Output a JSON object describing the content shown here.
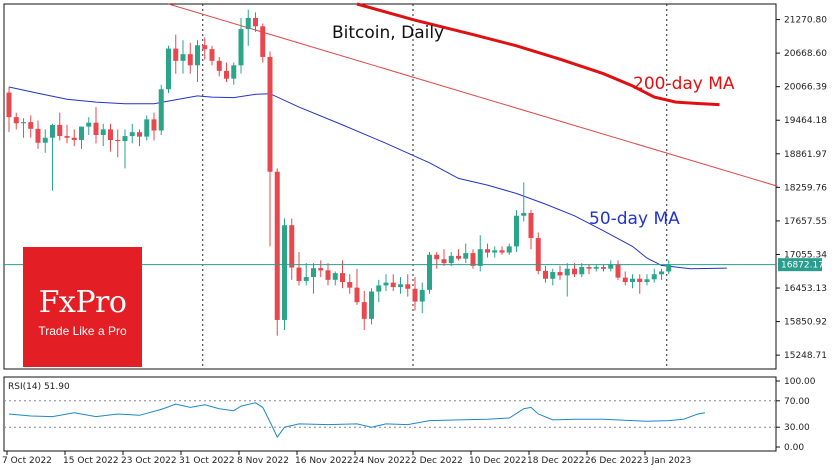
{
  "chart_data": [
    {
      "type": "candlestick",
      "title": "Bitcoin, Daily",
      "y_ticks": [
        "21270.80",
        "20668.60",
        "20066.39",
        "19464.18",
        "18861.97",
        "18259.76",
        "17657.55",
        "17055.34",
        "16453.13",
        "15850.92",
        "15248.71"
      ],
      "ylim": [
        15000,
        21550
      ],
      "current_price_label": "16872.17",
      "current_price": 16872.17,
      "x_labels": [
        "7 Oct 2022",
        "15 Oct 2022",
        "23 Oct 2022",
        "31 Oct 2022",
        "8 Nov 2022",
        "16 Nov 2022",
        "24 Nov 2022",
        "2 Dec 2022",
        "10 Dec 2022",
        "18 Dec 2022",
        "26 Dec 2022",
        "3 Jan 2023"
      ],
      "ma_labels": {
        "ma200": "200-day MA",
        "ma50": "50-day MA"
      },
      "colors": {
        "up": "#2aa58a",
        "down": "#e8474e",
        "ma200": "#e01010",
        "ma50": "#2233cc",
        "trend": "#e04848",
        "price_line": "#2a9d8f"
      },
      "candles": [
        {
          "o": 19960,
          "h": 20060,
          "l": 19250,
          "c": 19520
        },
        {
          "o": 19520,
          "h": 19600,
          "l": 19300,
          "c": 19410
        },
        {
          "o": 19410,
          "h": 19500,
          "l": 19150,
          "c": 19430
        },
        {
          "o": 19430,
          "h": 19550,
          "l": 19150,
          "c": 19310
        },
        {
          "o": 19310,
          "h": 19460,
          "l": 18950,
          "c": 19060
        },
        {
          "o": 19060,
          "h": 19300,
          "l": 18880,
          "c": 19150
        },
        {
          "o": 19150,
          "h": 19400,
          "l": 18200,
          "c": 19380
        },
        {
          "o": 19380,
          "h": 19600,
          "l": 19100,
          "c": 19180
        },
        {
          "o": 19180,
          "h": 19380,
          "l": 19050,
          "c": 19150
        },
        {
          "o": 19150,
          "h": 19300,
          "l": 19000,
          "c": 19110
        },
        {
          "o": 19110,
          "h": 19300,
          "l": 18950,
          "c": 19350
        },
        {
          "o": 19350,
          "h": 19520,
          "l": 19200,
          "c": 19420
        },
        {
          "o": 19420,
          "h": 19700,
          "l": 19050,
          "c": 19200
        },
        {
          "o": 19200,
          "h": 19400,
          "l": 19000,
          "c": 19300
        },
        {
          "o": 19300,
          "h": 19400,
          "l": 18900,
          "c": 19110
        },
        {
          "o": 19110,
          "h": 19300,
          "l": 18800,
          "c": 19090
        },
        {
          "o": 19090,
          "h": 19300,
          "l": 18600,
          "c": 19180
        },
        {
          "o": 19180,
          "h": 19400,
          "l": 19050,
          "c": 19250
        },
        {
          "o": 19250,
          "h": 19300,
          "l": 19000,
          "c": 19170
        },
        {
          "o": 19170,
          "h": 19550,
          "l": 19100,
          "c": 19480
        },
        {
          "o": 19480,
          "h": 19600,
          "l": 19100,
          "c": 19280
        },
        {
          "o": 19280,
          "h": 20100,
          "l": 19200,
          "c": 20020
        },
        {
          "o": 20020,
          "h": 20800,
          "l": 19950,
          "c": 20750
        },
        {
          "o": 20750,
          "h": 21000,
          "l": 20300,
          "c": 20530
        },
        {
          "o": 20530,
          "h": 20900,
          "l": 20300,
          "c": 20650
        },
        {
          "o": 20650,
          "h": 20850,
          "l": 20300,
          "c": 20450
        },
        {
          "o": 20450,
          "h": 20900,
          "l": 20150,
          "c": 20810
        },
        {
          "o": 20810,
          "h": 20950,
          "l": 20550,
          "c": 20740
        },
        {
          "o": 20740,
          "h": 20800,
          "l": 20450,
          "c": 20530
        },
        {
          "o": 20530,
          "h": 20600,
          "l": 20250,
          "c": 20350
        },
        {
          "o": 20350,
          "h": 20500,
          "l": 20150,
          "c": 20210
        },
        {
          "o": 20210,
          "h": 20500,
          "l": 20100,
          "c": 20450
        },
        {
          "o": 20450,
          "h": 21300,
          "l": 20300,
          "c": 21100
        },
        {
          "o": 21100,
          "h": 21450,
          "l": 20800,
          "c": 21300
        },
        {
          "o": 21300,
          "h": 21400,
          "l": 21050,
          "c": 21150
        },
        {
          "o": 21150,
          "h": 21200,
          "l": 20500,
          "c": 20600
        },
        {
          "o": 20600,
          "h": 20700,
          "l": 17200,
          "c": 18540
        },
        {
          "o": 18540,
          "h": 18600,
          "l": 15600,
          "c": 15880
        },
        {
          "o": 15880,
          "h": 17700,
          "l": 15700,
          "c": 17580
        },
        {
          "o": 17580,
          "h": 17700,
          "l": 16600,
          "c": 16820
        },
        {
          "o": 16820,
          "h": 17100,
          "l": 16500,
          "c": 16580
        },
        {
          "o": 16580,
          "h": 16900,
          "l": 16500,
          "c": 16650
        },
        {
          "o": 16650,
          "h": 16900,
          "l": 16350,
          "c": 16810
        },
        {
          "o": 16810,
          "h": 16950,
          "l": 16650,
          "c": 16770
        },
        {
          "o": 16770,
          "h": 16900,
          "l": 16500,
          "c": 16600
        },
        {
          "o": 16600,
          "h": 16750,
          "l": 16500,
          "c": 16720
        },
        {
          "o": 16720,
          "h": 16950,
          "l": 16450,
          "c": 16560
        },
        {
          "o": 16560,
          "h": 16700,
          "l": 16350,
          "c": 16460
        },
        {
          "o": 16460,
          "h": 16800,
          "l": 16150,
          "c": 16200
        },
        {
          "o": 16200,
          "h": 16400,
          "l": 15700,
          "c": 15900
        },
        {
          "o": 15900,
          "h": 16450,
          "l": 15800,
          "c": 16390
        },
        {
          "o": 16390,
          "h": 16600,
          "l": 16200,
          "c": 16500
        },
        {
          "o": 16500,
          "h": 16700,
          "l": 16400,
          "c": 16550
        },
        {
          "o": 16550,
          "h": 16700,
          "l": 16400,
          "c": 16470
        },
        {
          "o": 16470,
          "h": 16650,
          "l": 16350,
          "c": 16520
        },
        {
          "o": 16520,
          "h": 16700,
          "l": 16300,
          "c": 16440
        },
        {
          "o": 16440,
          "h": 16650,
          "l": 16050,
          "c": 16210
        },
        {
          "o": 16210,
          "h": 16550,
          "l": 16000,
          "c": 16420
        },
        {
          "o": 16420,
          "h": 17100,
          "l": 16350,
          "c": 17050
        },
        {
          "o": 17050,
          "h": 17100,
          "l": 16800,
          "c": 16970
        },
        {
          "o": 16970,
          "h": 17150,
          "l": 16850,
          "c": 16900
        },
        {
          "o": 16900,
          "h": 17100,
          "l": 16850,
          "c": 17030
        },
        {
          "o": 17030,
          "h": 17150,
          "l": 16950,
          "c": 16980
        },
        {
          "o": 16980,
          "h": 17250,
          "l": 16900,
          "c": 17080
        },
        {
          "o": 17080,
          "h": 17150,
          "l": 16800,
          "c": 16850
        },
        {
          "o": 16850,
          "h": 17400,
          "l": 16750,
          "c": 17150
        },
        {
          "o": 17150,
          "h": 17250,
          "l": 17000,
          "c": 17090
        },
        {
          "o": 17090,
          "h": 17200,
          "l": 17000,
          "c": 17130
        },
        {
          "o": 17130,
          "h": 17200,
          "l": 17050,
          "c": 17090
        },
        {
          "o": 17090,
          "h": 17250,
          "l": 17050,
          "c": 17200
        },
        {
          "o": 17200,
          "h": 17850,
          "l": 17100,
          "c": 17750
        },
        {
          "o": 17750,
          "h": 18350,
          "l": 17650,
          "c": 17800
        },
        {
          "o": 17800,
          "h": 17850,
          "l": 17150,
          "c": 17350
        },
        {
          "o": 17350,
          "h": 17450,
          "l": 16700,
          "c": 16760
        },
        {
          "o": 16760,
          "h": 16850,
          "l": 16550,
          "c": 16620
        },
        {
          "o": 16620,
          "h": 16800,
          "l": 16500,
          "c": 16740
        },
        {
          "o": 16740,
          "h": 16850,
          "l": 16600,
          "c": 16680
        },
        {
          "o": 16680,
          "h": 16900,
          "l": 16300,
          "c": 16800
        },
        {
          "o": 16800,
          "h": 16900,
          "l": 16650,
          "c": 16700
        },
        {
          "o": 16700,
          "h": 16900,
          "l": 16650,
          "c": 16830
        },
        {
          "o": 16830,
          "h": 16880,
          "l": 16700,
          "c": 16800
        },
        {
          "o": 16800,
          "h": 16880,
          "l": 16750,
          "c": 16830
        },
        {
          "o": 16830,
          "h": 16880,
          "l": 16750,
          "c": 16800
        },
        {
          "o": 16800,
          "h": 16950,
          "l": 16750,
          "c": 16880
        },
        {
          "o": 16880,
          "h": 16950,
          "l": 16600,
          "c": 16640
        },
        {
          "o": 16640,
          "h": 16750,
          "l": 16500,
          "c": 16560
        },
        {
          "o": 16560,
          "h": 16700,
          "l": 16450,
          "c": 16620
        },
        {
          "o": 16620,
          "h": 16700,
          "l": 16350,
          "c": 16560
        },
        {
          "o": 16560,
          "h": 16700,
          "l": 16500,
          "c": 16610
        },
        {
          "o": 16610,
          "h": 16800,
          "l": 16550,
          "c": 16700
        },
        {
          "o": 16700,
          "h": 16800,
          "l": 16600,
          "c": 16750
        },
        {
          "o": 16750,
          "h": 16950,
          "l": 16700,
          "c": 16872
        }
      ],
      "ma200": [
        {
          "i": 48,
          "v": 21550
        },
        {
          "i": 56,
          "v": 21260
        },
        {
          "i": 64,
          "v": 21000
        },
        {
          "i": 70,
          "v": 20800
        },
        {
          "i": 76,
          "v": 20560
        },
        {
          "i": 82,
          "v": 20300
        },
        {
          "i": 86,
          "v": 20080
        },
        {
          "i": 89,
          "v": 19880
        },
        {
          "i": 92,
          "v": 19790
        },
        {
          "i": 95,
          "v": 19765
        },
        {
          "i": 98,
          "v": 19745
        }
      ],
      "ma50": [
        {
          "i": 0,
          "v": 20060
        },
        {
          "i": 4,
          "v": 19950
        },
        {
          "i": 8,
          "v": 19840
        },
        {
          "i": 12,
          "v": 19790
        },
        {
          "i": 16,
          "v": 19760
        },
        {
          "i": 20,
          "v": 19760
        },
        {
          "i": 23,
          "v": 19830
        },
        {
          "i": 26,
          "v": 19900
        },
        {
          "i": 28,
          "v": 19880
        },
        {
          "i": 31,
          "v": 19870
        },
        {
          "i": 34,
          "v": 19930
        },
        {
          "i": 36,
          "v": 19940
        },
        {
          "i": 40,
          "v": 19700
        },
        {
          "i": 46,
          "v": 19380
        },
        {
          "i": 52,
          "v": 19050
        },
        {
          "i": 58,
          "v": 18700
        },
        {
          "i": 62,
          "v": 18420
        },
        {
          "i": 66,
          "v": 18300
        },
        {
          "i": 70,
          "v": 18150
        },
        {
          "i": 74,
          "v": 17960
        },
        {
          "i": 78,
          "v": 17750
        },
        {
          "i": 82,
          "v": 17480
        },
        {
          "i": 86,
          "v": 17200
        },
        {
          "i": 88,
          "v": 16990
        },
        {
          "i": 90,
          "v": 16860
        },
        {
          "i": 94,
          "v": 16800
        },
        {
          "i": 99,
          "v": 16810
        }
      ],
      "trend": [
        {
          "i": 22,
          "v": 21550
        },
        {
          "i": 106,
          "v": 18280
        }
      ],
      "date_separators": [
        27,
        56,
        91
      ]
    },
    {
      "type": "line",
      "title": "RSI(14) 51.90",
      "y_ticks": [
        "100.00",
        "70.00",
        "30.00",
        "0.00"
      ],
      "levels": [
        70,
        30
      ],
      "ylim": [
        0,
        100
      ],
      "values": [
        {
          "i": 0,
          "v": 50
        },
        {
          "i": 3,
          "v": 47
        },
        {
          "i": 6,
          "v": 46
        },
        {
          "i": 9,
          "v": 52
        },
        {
          "i": 12,
          "v": 46
        },
        {
          "i": 15,
          "v": 50
        },
        {
          "i": 18,
          "v": 48
        },
        {
          "i": 21,
          "v": 57
        },
        {
          "i": 23,
          "v": 65
        },
        {
          "i": 25,
          "v": 60
        },
        {
          "i": 27,
          "v": 64
        },
        {
          "i": 29,
          "v": 58
        },
        {
          "i": 31,
          "v": 55
        },
        {
          "i": 32,
          "v": 62
        },
        {
          "i": 34,
          "v": 67
        },
        {
          "i": 35,
          "v": 60
        },
        {
          "i": 36,
          "v": 38
        },
        {
          "i": 37,
          "v": 15
        },
        {
          "i": 38,
          "v": 30
        },
        {
          "i": 40,
          "v": 35
        },
        {
          "i": 44,
          "v": 34
        },
        {
          "i": 48,
          "v": 35
        },
        {
          "i": 50,
          "v": 30
        },
        {
          "i": 52,
          "v": 35
        },
        {
          "i": 55,
          "v": 34
        },
        {
          "i": 58,
          "v": 40
        },
        {
          "i": 62,
          "v": 41
        },
        {
          "i": 66,
          "v": 42
        },
        {
          "i": 69,
          "v": 44
        },
        {
          "i": 71,
          "v": 58
        },
        {
          "i": 72,
          "v": 60
        },
        {
          "i": 73,
          "v": 50
        },
        {
          "i": 75,
          "v": 41
        },
        {
          "i": 78,
          "v": 42
        },
        {
          "i": 82,
          "v": 42
        },
        {
          "i": 86,
          "v": 40
        },
        {
          "i": 88,
          "v": 39
        },
        {
          "i": 91,
          "v": 40
        },
        {
          "i": 93,
          "v": 42
        },
        {
          "i": 95,
          "v": 50
        },
        {
          "i": 96,
          "v": 52
        }
      ]
    }
  ],
  "logo": {
    "name": "FxPro",
    "tagline": "Trade Like a Pro"
  }
}
